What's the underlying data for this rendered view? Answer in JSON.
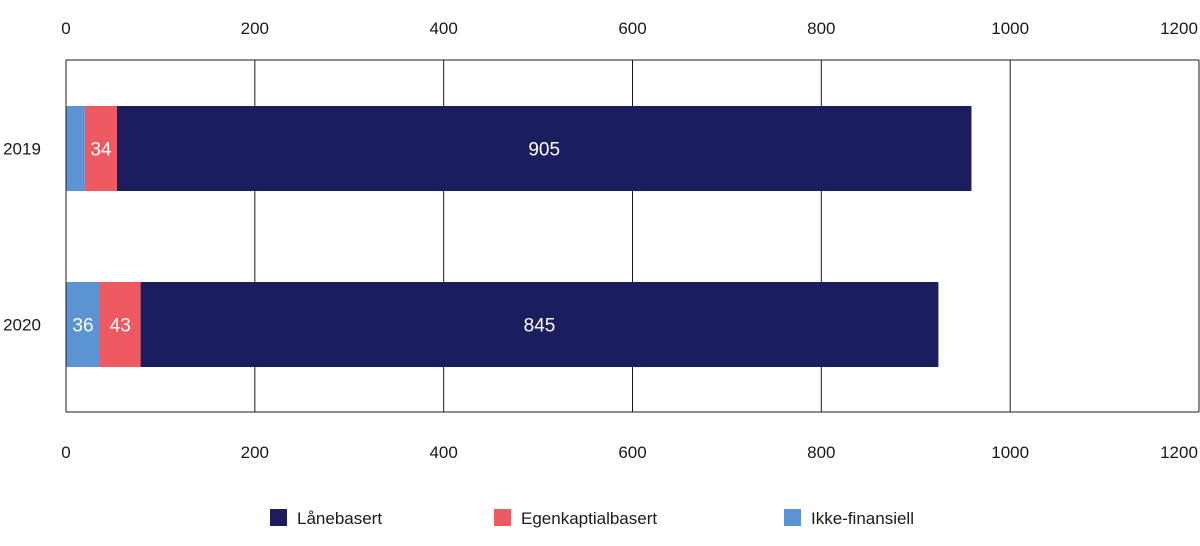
{
  "chart_data": {
    "type": "bar",
    "orientation": "horizontal",
    "stacked": true,
    "categories": [
      "2019",
      "2020"
    ],
    "series": [
      {
        "name": "Ikke-finansiell",
        "color": "#5b93d3",
        "values": [
          20,
          36
        ],
        "labels": [
          "",
          "36"
        ]
      },
      {
        "name": "Egenkaptialbasert",
        "color": "#ef5a62",
        "values": [
          34,
          43
        ],
        "labels": [
          "34",
          "43"
        ]
      },
      {
        "name": "Lånebasert",
        "color": "#1b1d5e",
        "values": [
          905,
          845
        ],
        "labels": [
          "905",
          "845"
        ]
      }
    ],
    "legend_order": [
      "Lånebasert",
      "Egenkaptialbasert",
      "Ikke-finansiell"
    ],
    "xlim": [
      0,
      1200
    ],
    "xticks": [
      0,
      200,
      400,
      600,
      800,
      1000,
      1200
    ],
    "tick_labels": [
      "0",
      "200",
      "400",
      "600",
      "800",
      "1000",
      "1200"
    ],
    "xaxis_top_and_bottom": true,
    "grid": "vertical",
    "legend_position": "bottom-center",
    "title": "",
    "xlabel": "",
    "ylabel": ""
  }
}
